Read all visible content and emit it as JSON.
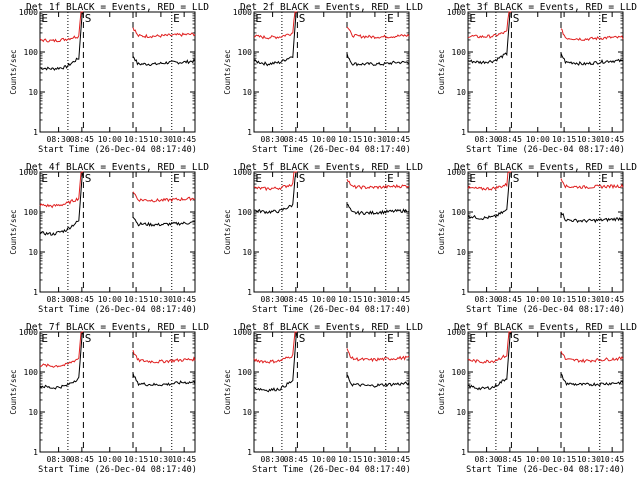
{
  "chart_data": [
    {
      "type": "line",
      "title": "Det 1f BLACK = Events, RED = LLD",
      "xlabel": "Start Time (26-Dec-04 08:17:40)",
      "ylabel": "Counts/sec",
      "yscale": "log",
      "ylim": [
        1,
        1000
      ],
      "y_ticks": [
        "1",
        "10",
        "100",
        "1000"
      ],
      "x_ticks": [
        "08:30",
        "08:45",
        "10:00",
        "10:15",
        "10:30",
        "10:45"
      ],
      "markers": [
        "E",
        "S",
        "E"
      ],
      "series": [
        {
          "color": "#000000",
          "values": [
            40,
            38,
            42,
            70,
            1000,
            70,
            55,
            50,
            50,
            50,
            55,
            55,
            60
          ]
        },
        {
          "color": "#e02020",
          "values": [
            200,
            190,
            210,
            250,
            1000,
            450,
            330,
            260,
            250,
            250,
            260,
            270,
            280
          ]
        }
      ]
    },
    {
      "type": "line",
      "title": "Det 2f BLACK = Events, RED = LLD",
      "xlabel": "Start Time (26-Dec-04 08:17:40)",
      "ylabel": "Counts/sec",
      "yscale": "log",
      "ylim": [
        1,
        1000
      ],
      "y_ticks": [
        "1",
        "10",
        "100",
        "1000"
      ],
      "x_ticks": [
        "08:30",
        "08:45",
        "10:00",
        "10:15",
        "10:30",
        "10:45"
      ],
      "markers": [
        "E",
        "S",
        "E"
      ],
      "series": [
        {
          "color": "#000000",
          "values": [
            60,
            50,
            55,
            80,
            1000,
            80,
            60,
            55,
            50,
            50,
            50,
            55,
            55
          ]
        },
        {
          "color": "#e02020",
          "values": [
            250,
            230,
            240,
            300,
            1000,
            500,
            350,
            280,
            250,
            240,
            240,
            250,
            260
          ]
        }
      ]
    },
    {
      "type": "line",
      "title": "Det 3f BLACK = Events, RED = LLD",
      "xlabel": "Start Time (26-Dec-04 08:17:40)",
      "ylabel": "Counts/sec",
      "yscale": "log",
      "ylim": [
        1,
        1000
      ],
      "y_ticks": [
        "1",
        "10",
        "100",
        "1000"
      ],
      "x_ticks": [
        "08:30",
        "08:45",
        "10:00",
        "10:15",
        "10:30",
        "10:45"
      ],
      "markers": [
        "E",
        "S",
        "E"
      ],
      "series": [
        {
          "color": "#000000",
          "values": [
            60,
            55,
            60,
            90,
            1000,
            90,
            65,
            55,
            55,
            50,
            55,
            60,
            60
          ]
        },
        {
          "color": "#e02020",
          "values": [
            250,
            240,
            250,
            320,
            1000,
            450,
            300,
            230,
            220,
            210,
            220,
            230,
            230
          ]
        }
      ]
    },
    {
      "type": "line",
      "title": "Det 4f BLACK = Events, RED = LLD",
      "xlabel": "Start Time (26-Dec-04 08:17:40)",
      "ylabel": "Counts/sec",
      "yscale": "log",
      "ylim": [
        1,
        1000
      ],
      "y_ticks": [
        "1",
        "10",
        "100",
        "1000"
      ],
      "x_ticks": [
        "08:30",
        "08:45",
        "10:00",
        "10:15",
        "10:30",
        "10:45"
      ],
      "markers": [
        "E",
        "S",
        "E"
      ],
      "series": [
        {
          "color": "#000000",
          "values": [
            30,
            28,
            35,
            60,
            1000,
            70,
            55,
            50,
            50,
            48,
            50,
            52,
            55
          ]
        },
        {
          "color": "#e02020",
          "values": [
            150,
            140,
            160,
            220,
            1000,
            400,
            250,
            210,
            200,
            195,
            200,
            210,
            220
          ]
        }
      ]
    },
    {
      "type": "line",
      "title": "Det 5f BLACK = Events, RED = LLD",
      "xlabel": "Start Time (26-Dec-04 08:17:40)",
      "ylabel": "Counts/sec",
      "yscale": "log",
      "ylim": [
        1,
        1000
      ],
      "y_ticks": [
        "1",
        "10",
        "100",
        "1000"
      ],
      "x_ticks": [
        "08:30",
        "08:45",
        "10:00",
        "10:15",
        "10:30",
        "10:45"
      ],
      "markers": [
        "E",
        "S",
        "E"
      ],
      "series": [
        {
          "color": "#000000",
          "values": [
            110,
            100,
            105,
            150,
            1000,
            140,
            110,
            100,
            95,
            95,
            100,
            105,
            110
          ]
        },
        {
          "color": "#e02020",
          "values": [
            400,
            380,
            400,
            500,
            1000,
            650,
            500,
            440,
            420,
            410,
            420,
            440,
            450
          ]
        }
      ]
    },
    {
      "type": "line",
      "title": "Det 6f BLACK = Events, RED = LLD",
      "xlabel": "Start Time (26-Dec-04 08:17:40)",
      "ylabel": "Counts/sec",
      "yscale": "log",
      "ylim": [
        1,
        1000
      ],
      "y_ticks": [
        "1",
        "10",
        "100",
        "1000"
      ],
      "x_ticks": [
        "08:30",
        "08:45",
        "10:00",
        "10:15",
        "10:30",
        "10:45"
      ],
      "markers": [
        "E",
        "S",
        "E"
      ],
      "series": [
        {
          "color": "#000000",
          "values": [
            80,
            70,
            75,
            110,
            1000,
            100,
            75,
            65,
            62,
            60,
            62,
            65,
            70
          ]
        },
        {
          "color": "#e02020",
          "values": [
            400,
            380,
            390,
            480,
            1000,
            600,
            480,
            440,
            430,
            420,
            430,
            440,
            450
          ]
        }
      ]
    },
    {
      "type": "line",
      "title": "Det 7f BLACK = Events, RED = LLD",
      "xlabel": "Start Time (26-Dec-04 08:17:40)",
      "ylabel": "Counts/sec",
      "yscale": "log",
      "ylim": [
        1,
        1000
      ],
      "y_ticks": [
        "1",
        "10",
        "100",
        "1000"
      ],
      "x_ticks": [
        "08:30",
        "08:45",
        "10:00",
        "10:15",
        "10:30",
        "10:45"
      ],
      "markers": [
        "E",
        "S",
        "E"
      ],
      "series": [
        {
          "color": "#000000",
          "values": [
            45,
            40,
            45,
            70,
            1000,
            80,
            60,
            55,
            50,
            48,
            50,
            55,
            55
          ]
        },
        {
          "color": "#e02020",
          "values": [
            150,
            140,
            150,
            220,
            1000,
            400,
            250,
            210,
            190,
            180,
            190,
            200,
            210
          ]
        }
      ]
    },
    {
      "type": "line",
      "title": "Det 8f BLACK = Events, RED = LLD",
      "xlabel": "Start Time (26-Dec-04 08:17:40)",
      "ylabel": "Counts/sec",
      "yscale": "log",
      "ylim": [
        1,
        1000
      ],
      "y_ticks": [
        "1",
        "10",
        "100",
        "1000"
      ],
      "x_ticks": [
        "08:30",
        "08:45",
        "10:00",
        "10:15",
        "10:30",
        "10:45"
      ],
      "markers": [
        "E",
        "S",
        "E"
      ],
      "series": [
        {
          "color": "#000000",
          "values": [
            40,
            35,
            38,
            60,
            1000,
            70,
            55,
            50,
            48,
            45,
            48,
            50,
            52
          ]
        },
        {
          "color": "#e02020",
          "values": [
            200,
            180,
            190,
            260,
            1000,
            420,
            280,
            230,
            210,
            200,
            210,
            220,
            230
          ]
        }
      ]
    },
    {
      "type": "line",
      "title": "Det 9f BLACK = Events, RED = LLD",
      "xlabel": "Start Time (26-Dec-04 08:17:40)",
      "ylabel": "Counts/sec",
      "yscale": "log",
      "ylim": [
        1,
        1000
      ],
      "y_ticks": [
        "1",
        "10",
        "100",
        "1000"
      ],
      "x_ticks": [
        "08:30",
        "08:45",
        "10:00",
        "10:15",
        "10:30",
        "10:45"
      ],
      "markers": [
        "E",
        "S",
        "E"
      ],
      "series": [
        {
          "color": "#000000",
          "values": [
            45,
            38,
            42,
            70,
            1000,
            75,
            60,
            55,
            50,
            48,
            50,
            52,
            55
          ]
        },
        {
          "color": "#e02020",
          "values": [
            200,
            180,
            190,
            260,
            1000,
            400,
            260,
            210,
            200,
            190,
            200,
            210,
            220
          ]
        }
      ]
    }
  ]
}
